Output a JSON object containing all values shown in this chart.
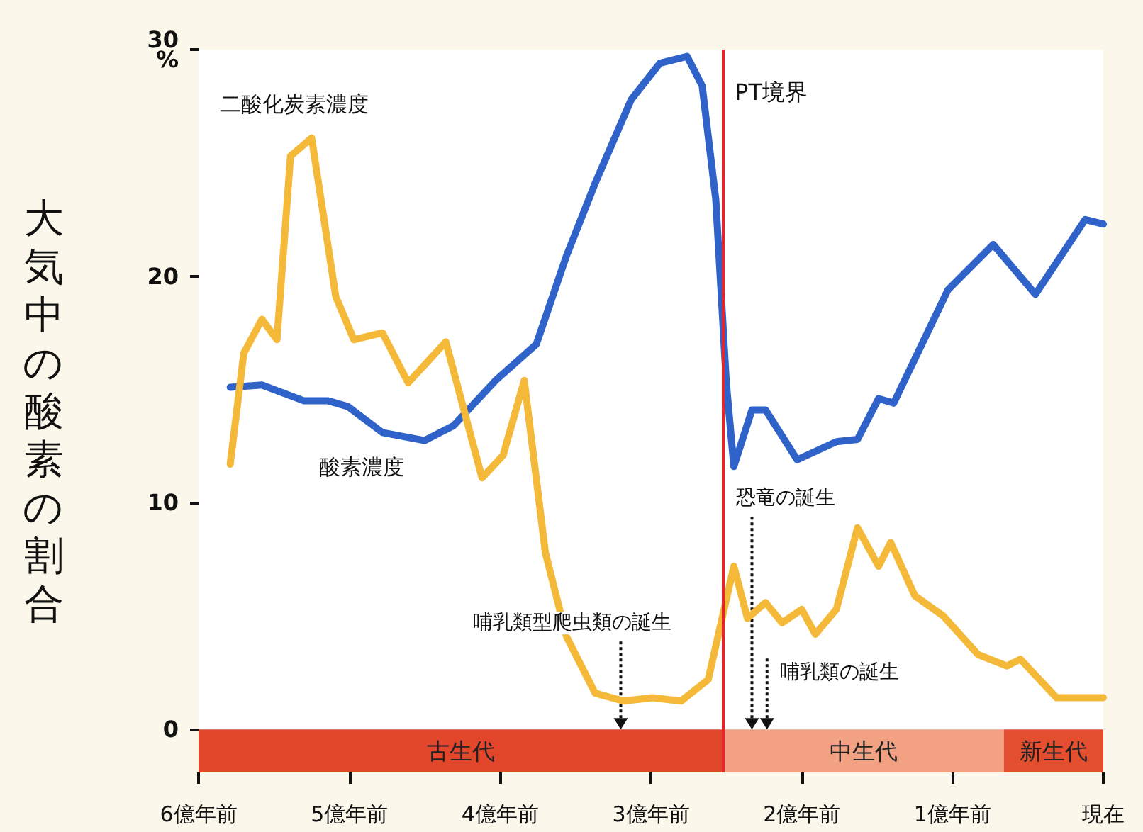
{
  "chart_data": {
    "type": "line",
    "ylabel": "大気中の酸素の割合",
    "xlim": [
      6,
      0
    ],
    "xticks": [
      {
        "value": 6,
        "label": "6億年前"
      },
      {
        "value": 5,
        "label": "5億年前"
      },
      {
        "value": 4,
        "label": "4億年前"
      },
      {
        "value": 3,
        "label": "3億年前"
      },
      {
        "value": 2,
        "label": "2億年前"
      },
      {
        "value": 1,
        "label": "1億年前"
      },
      {
        "value": 0,
        "label": "現在"
      }
    ],
    "ylim": [
      -1.9,
      30
    ],
    "yticks": [
      0,
      10,
      20,
      {
        "value": 30,
        "label": "30\n%"
      }
    ],
    "grid": false,
    "legend": false,
    "marker": "none",
    "line_style": "solid",
    "series": [
      {
        "name": "酸素濃度",
        "color": "#2f63c9",
        "x": [
          5.79,
          5.58,
          5.3,
          5.14,
          5.01,
          4.78,
          4.5,
          4.31,
          4.03,
          3.76,
          3.56,
          3.37,
          3.13,
          2.94,
          2.76,
          2.66,
          2.57,
          2.5,
          2.45,
          2.33,
          2.24,
          2.03,
          1.77,
          1.63,
          1.49,
          1.39,
          1.03,
          0.73,
          0.45,
          0.12,
          0
        ],
        "values": [
          15.1,
          15.2,
          14.5,
          14.5,
          14.25,
          13.1,
          12.75,
          13.4,
          15.4,
          17.0,
          20.9,
          24.1,
          27.8,
          29.4,
          29.7,
          28.4,
          23.4,
          15.3,
          11.6,
          14.1,
          14.1,
          11.9,
          12.7,
          12.8,
          14.6,
          14.4,
          19.4,
          21.4,
          19.2,
          22.5,
          22.3
        ]
      },
      {
        "name": "二酸化炭素濃度",
        "color": "#f5b93a",
        "x": [
          5.79,
          5.7,
          5.58,
          5.48,
          5.39,
          5.25,
          5.09,
          4.97,
          4.78,
          4.61,
          4.36,
          4.12,
          3.98,
          3.84,
          3.7,
          3.56,
          3.37,
          3.18,
          2.99,
          2.8,
          2.62,
          2.45,
          2.36,
          2.24,
          2.13,
          2.0,
          1.91,
          1.77,
          1.63,
          1.49,
          1.41,
          1.25,
          1.06,
          0.83,
          0.64,
          0.55,
          0.31,
          0
        ],
        "values": [
          11.7,
          16.6,
          18.1,
          17.2,
          25.3,
          26.1,
          19.1,
          17.2,
          17.5,
          15.3,
          17.1,
          11.1,
          12.1,
          15.4,
          7.8,
          4.1,
          1.6,
          1.25,
          1.4,
          1.25,
          2.2,
          7.2,
          4.9,
          5.6,
          4.7,
          5.3,
          4.2,
          5.3,
          8.9,
          7.2,
          8.25,
          5.9,
          5.0,
          3.3,
          2.8,
          3.1,
          1.4,
          1.4
        ]
      }
    ],
    "ref_lines": [
      {
        "axis": "x",
        "value": 2.52,
        "label": "PT境界",
        "color": "#e8242a"
      }
    ],
    "bands": [
      {
        "axis": "x",
        "from": 6,
        "to": 2.52,
        "label": "古生代",
        "color": "#e2472c"
      },
      {
        "axis": "x",
        "from": 2.52,
        "to": 0.66,
        "label": "中生代",
        "color": "#f2a283"
      },
      {
        "axis": "x",
        "from": 0.66,
        "to": 0,
        "label": "新生代",
        "color": "#e4502f"
      }
    ],
    "annotations": [
      {
        "text": "哺乳類型爬虫類の誕生",
        "x": 3.2,
        "y": 0
      },
      {
        "text": "恐竜の誕生",
        "x": 2.33,
        "y": 0
      },
      {
        "text": "哺乳類の誕生",
        "x": 2.23,
        "y": 0
      }
    ]
  }
}
